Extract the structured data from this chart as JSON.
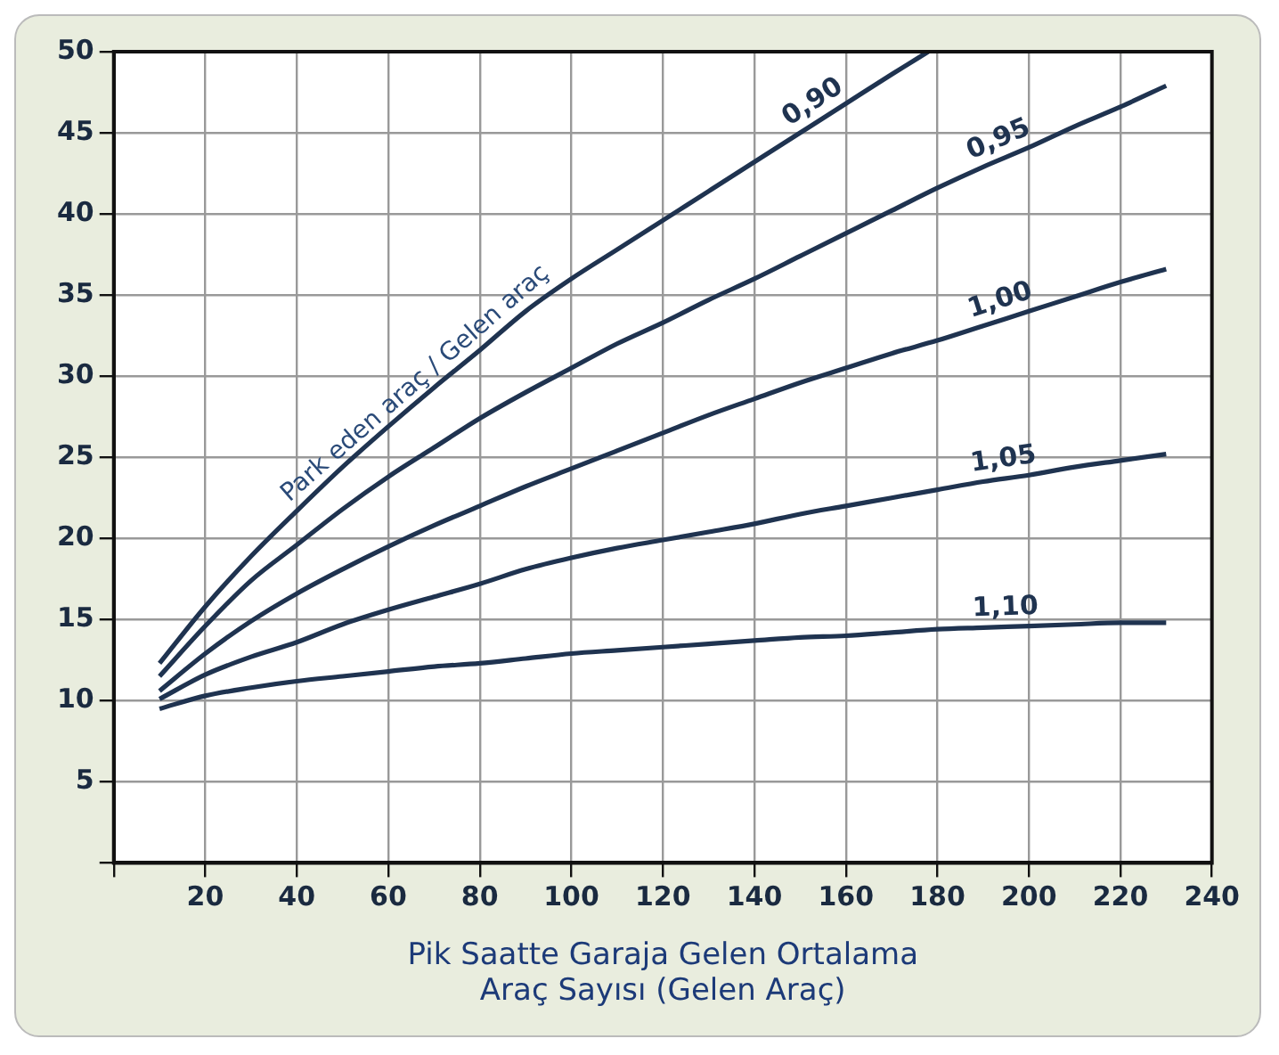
{
  "chart_data": {
    "type": "line",
    "xlabel": "Pik Saatte Garaja Gelen Ortalama\nAraç Sayısı (Gelen Araç)",
    "x": [
      10,
      20,
      30,
      40,
      50,
      60,
      70,
      80,
      90,
      100,
      110,
      120,
      130,
      140,
      150,
      160,
      170,
      180,
      190,
      200,
      210,
      220,
      230
    ],
    "series": [
      {
        "name": "0,90",
        "color": "#1f3350",
        "x": [
          10,
          20,
          30,
          40,
          50,
          60,
          70,
          80,
          90,
          100,
          110,
          120,
          130,
          140,
          150,
          160,
          170,
          178
        ],
        "values": [
          12.3,
          15.8,
          18.9,
          21.7,
          24.4,
          26.9,
          29.3,
          31.6,
          34.0,
          36.0,
          37.8,
          39.6,
          41.4,
          43.2,
          45.0,
          46.8,
          48.6,
          50
        ]
      },
      {
        "name": "0,95",
        "color": "#1f3350",
        "values": [
          11.5,
          14.6,
          17.4,
          19.6,
          21.8,
          23.8,
          25.6,
          27.4,
          29.0,
          30.5,
          32.0,
          33.3,
          34.7,
          36.0,
          37.4,
          38.8,
          40.2,
          41.6,
          42.9,
          44.1,
          45.4,
          46.6,
          47.9
        ]
      },
      {
        "name": "1,00",
        "color": "#1f3350",
        "values": [
          10.6,
          12.9,
          14.9,
          16.6,
          18.1,
          19.5,
          20.8,
          22.0,
          23.2,
          24.3,
          25.4,
          26.5,
          27.6,
          28.6,
          29.6,
          30.5,
          31.4,
          32.2,
          33.1,
          34.0,
          34.9,
          35.8,
          36.6
        ]
      },
      {
        "name": "1,05",
        "color": "#1f3350",
        "values": [
          10.1,
          11.6,
          12.7,
          13.6,
          14.7,
          15.6,
          16.4,
          17.2,
          18.1,
          18.8,
          19.4,
          19.9,
          20.4,
          20.9,
          21.5,
          22.0,
          22.5,
          23.0,
          23.5,
          23.9,
          24.4,
          24.8,
          25.2
        ]
      },
      {
        "name": "1,10",
        "color": "#1f3350",
        "values": [
          9.5,
          10.3,
          10.8,
          11.2,
          11.5,
          11.8,
          12.1,
          12.3,
          12.6,
          12.9,
          13.1,
          13.3,
          13.5,
          13.7,
          13.9,
          14.0,
          14.2,
          14.4,
          14.5,
          14.6,
          14.7,
          14.8,
          14.8
        ]
      }
    ],
    "annotations": [
      "Park eden araç / Gelen araç"
    ],
    "xlim": [
      0,
      240
    ],
    "xticks": [
      {
        "value": 0,
        "label": null
      },
      20,
      40,
      60,
      80,
      100,
      120,
      140,
      160,
      180,
      200,
      220,
      240
    ],
    "ylim": [
      0,
      50
    ],
    "yticks": [
      {
        "value": 0,
        "label": null
      },
      5,
      10,
      15,
      20,
      25,
      30,
      35,
      40,
      45,
      50
    ],
    "grid": true,
    "legend": false,
    "marker": "none",
    "line_style": "solid"
  }
}
